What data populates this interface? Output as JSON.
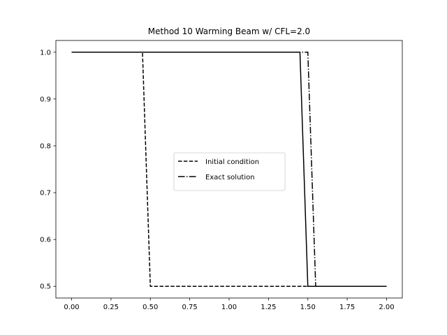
{
  "chart_data": {
    "type": "line",
    "title": "Method 10 Warming Beam w/ CFL=2.0",
    "xlabel": "",
    "ylabel": "",
    "xlim": [
      -0.1,
      2.1
    ],
    "ylim": [
      0.475,
      1.025
    ],
    "xticks": [
      0.0,
      0.25,
      0.5,
      0.75,
      1.0,
      1.25,
      1.5,
      1.75,
      2.0
    ],
    "xtick_labels": [
      "0.00",
      "0.25",
      "0.50",
      "0.75",
      "1.00",
      "1.25",
      "1.50",
      "1.75",
      "2.00"
    ],
    "yticks": [
      0.5,
      0.6,
      0.7,
      0.8,
      0.9,
      1.0
    ],
    "ytick_labels": [
      "0.5",
      "0.6",
      "0.7",
      "0.8",
      "0.9",
      "1.0"
    ],
    "grid": false,
    "legend_position": "center",
    "series": [
      {
        "name": "Initial condition",
        "style": "dashed",
        "color": "#000000",
        "x": [
          0.0,
          0.45,
          0.5,
          2.0
        ],
        "y": [
          1.0,
          1.0,
          0.5,
          0.5
        ]
      },
      {
        "name": "Exact solution",
        "style": "dashdot",
        "color": "#000000",
        "x": [
          0.0,
          1.5,
          1.55,
          2.0
        ],
        "y": [
          1.0,
          1.0,
          0.5,
          0.5
        ]
      },
      {
        "name": "",
        "style": "solid",
        "color": "#000000",
        "x": [
          0.0,
          1.45,
          1.5,
          2.0
        ],
        "y": [
          1.0,
          1.0,
          0.5,
          0.5
        ]
      }
    ]
  }
}
